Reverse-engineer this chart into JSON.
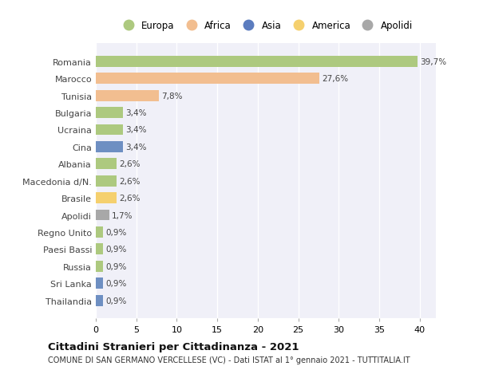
{
  "title": "Cittadini Stranieri per Cittadinanza - 2021",
  "subtitle": "COMUNE DI SAN GERMANO VERCELLESE (VC) - Dati ISTAT al 1° gennaio 2021 - TUTTITALIA.IT",
  "categories": [
    "Romania",
    "Marocco",
    "Tunisia",
    "Bulgaria",
    "Ucraina",
    "Cina",
    "Albania",
    "Macedonia d/N.",
    "Brasile",
    "Apolidi",
    "Regno Unito",
    "Paesi Bassi",
    "Russia",
    "Sri Lanka",
    "Thailandia"
  ],
  "values": [
    39.7,
    27.6,
    7.8,
    3.4,
    3.4,
    3.4,
    2.6,
    2.6,
    2.6,
    1.7,
    0.9,
    0.9,
    0.9,
    0.9,
    0.9
  ],
  "labels": [
    "39,7%",
    "27,6%",
    "7,8%",
    "3,4%",
    "3,4%",
    "3,4%",
    "2,6%",
    "2,6%",
    "2,6%",
    "1,7%",
    "0,9%",
    "0,9%",
    "0,9%",
    "0,9%",
    "0,9%"
  ],
  "colors": [
    "#adc97f",
    "#f2be90",
    "#f2be90",
    "#adc97f",
    "#adc97f",
    "#6e8fc2",
    "#adc97f",
    "#adc97f",
    "#f5d06e",
    "#a8a8a8",
    "#adc97f",
    "#adc97f",
    "#adc97f",
    "#6e8fc2",
    "#6e8fc2"
  ],
  "legend": [
    {
      "label": "Europa",
      "color": "#adc97f"
    },
    {
      "label": "Africa",
      "color": "#f2be90"
    },
    {
      "label": "Asia",
      "color": "#5b7cbf"
    },
    {
      "label": "America",
      "color": "#f5d06e"
    },
    {
      "label": "Apolidi",
      "color": "#a8a8a8"
    }
  ],
  "xlim": [
    0,
    42
  ],
  "xticks": [
    0,
    5,
    10,
    15,
    20,
    25,
    30,
    35,
    40
  ],
  "background_color": "#ffffff",
  "plot_bg_color": "#f0f0f8",
  "grid_color": "#ffffff",
  "bar_height": 0.65
}
